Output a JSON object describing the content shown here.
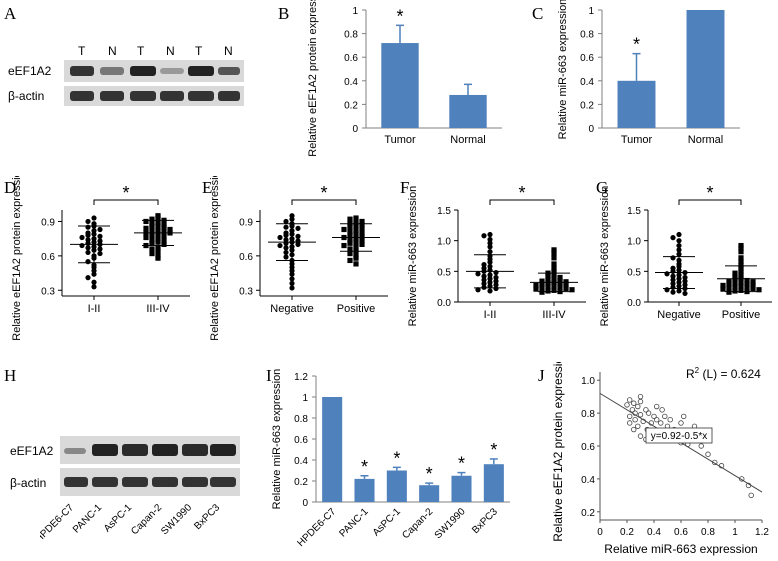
{
  "figure": {
    "panel_letters": [
      "A",
      "B",
      "C",
      "D",
      "E",
      "F",
      "G",
      "H",
      "I",
      "J"
    ]
  },
  "colors": {
    "bar": "#4f81bd",
    "axis": "#808080",
    "point": "#000000",
    "blot_bg": "#d9d9d9",
    "band": "#2b2b2b"
  },
  "panel_a": {
    "lanes": [
      "T",
      "N",
      "T",
      "N",
      "T",
      "N"
    ],
    "rows": [
      "eEF1A2",
      "β-actin"
    ]
  },
  "panel_h": {
    "rows": [
      "eEF1A2",
      "β-actin"
    ],
    "lanes": [
      "HPDE6-C7",
      "PANC-1",
      "AsPC-1",
      "Capan-2",
      "SW1990",
      "BxPC3"
    ]
  },
  "chart_data": [
    {
      "panel": "B",
      "type": "bar",
      "categories": [
        "Tumor",
        "Normal"
      ],
      "values": [
        0.72,
        0.28
      ],
      "errors": [
        0.15,
        0.09
      ],
      "stars": [
        "*",
        ""
      ],
      "ylabel": "Relative eEF1A2 protein expression",
      "yticks": [
        "0",
        "0.2",
        "0.4",
        "0.6",
        "0.8",
        "1"
      ],
      "ylim": [
        0,
        1
      ]
    },
    {
      "panel": "C",
      "type": "bar",
      "categories": [
        "Tumor",
        "Normal"
      ],
      "values": [
        0.4,
        1.0
      ],
      "errors": [
        0.23,
        0
      ],
      "stars": [
        "*",
        ""
      ],
      "ylabel": "Relative miR-663 expression",
      "yticks": [
        "0",
        "0.2",
        "0.4",
        "0.6",
        "0.8",
        "1"
      ],
      "ylim": [
        0,
        1
      ]
    },
    {
      "panel": "D",
      "type": "scatter",
      "categories": [
        "I-II",
        "III-IV"
      ],
      "groups": [
        {
          "mean": 0.7,
          "sd": 0.16,
          "values": [
            0.93,
            0.9,
            0.88,
            0.86,
            0.85,
            0.83,
            0.82,
            0.8,
            0.79,
            0.78,
            0.77,
            0.76,
            0.75,
            0.74,
            0.73,
            0.72,
            0.71,
            0.7,
            0.69,
            0.68,
            0.67,
            0.66,
            0.65,
            0.63,
            0.62,
            0.6,
            0.58,
            0.55,
            0.52,
            0.5,
            0.47,
            0.44,
            0.41,
            0.37,
            0.33
          ]
        },
        {
          "mean": 0.8,
          "sd": 0.11,
          "values": [
            0.95,
            0.93,
            0.92,
            0.91,
            0.9,
            0.89,
            0.88,
            0.87,
            0.86,
            0.86,
            0.85,
            0.84,
            0.83,
            0.82,
            0.82,
            0.81,
            0.8,
            0.8,
            0.79,
            0.78,
            0.77,
            0.76,
            0.75,
            0.74,
            0.73,
            0.72,
            0.71,
            0.7,
            0.69,
            0.67,
            0.66,
            0.64,
            0.62,
            0.6,
            0.58
          ]
        }
      ],
      "significance": "*",
      "ylabel": "Relative eEF1A2 protein expression",
      "yticks": [
        "0.3",
        "0.6",
        "0.9"
      ],
      "ylim": [
        0.25,
        1.0
      ]
    },
    {
      "panel": "E",
      "type": "scatter",
      "categories": [
        "Negative",
        "Positive"
      ],
      "groups": [
        {
          "mean": 0.72,
          "sd": 0.16,
          "values": [
            0.95,
            0.92,
            0.9,
            0.88,
            0.86,
            0.85,
            0.84,
            0.82,
            0.8,
            0.79,
            0.78,
            0.77,
            0.76,
            0.75,
            0.74,
            0.73,
            0.72,
            0.71,
            0.7,
            0.69,
            0.68,
            0.67,
            0.65,
            0.63,
            0.61,
            0.59,
            0.56,
            0.53,
            0.5,
            0.47,
            0.44,
            0.4,
            0.36,
            0.32
          ]
        },
        {
          "mean": 0.76,
          "sd": 0.12,
          "values": [
            0.93,
            0.92,
            0.9,
            0.89,
            0.88,
            0.87,
            0.86,
            0.85,
            0.84,
            0.83,
            0.82,
            0.81,
            0.8,
            0.79,
            0.78,
            0.77,
            0.76,
            0.75,
            0.74,
            0.73,
            0.72,
            0.71,
            0.7,
            0.69,
            0.68,
            0.66,
            0.64,
            0.62,
            0.6,
            0.58,
            0.56,
            0.53
          ]
        }
      ],
      "significance": "*",
      "ylabel": "Relative eEF1A2 protein expression",
      "yticks": [
        "0.3",
        "0.6",
        "0.9"
      ],
      "ylim": [
        0.25,
        1.0
      ]
    },
    {
      "panel": "F",
      "type": "scatter",
      "categories": [
        "I-II",
        "III-IV"
      ],
      "groups": [
        {
          "mean": 0.5,
          "sd": 0.27,
          "values": [
            1.1,
            1.08,
            1.02,
            0.96,
            0.9,
            0.82,
            0.75,
            0.7,
            0.65,
            0.61,
            0.58,
            0.55,
            0.52,
            0.5,
            0.48,
            0.46,
            0.44,
            0.42,
            0.4,
            0.38,
            0.36,
            0.34,
            0.32,
            0.3,
            0.28,
            0.26,
            0.24,
            0.22,
            0.2,
            0.18
          ]
        },
        {
          "mean": 0.32,
          "sd": 0.15,
          "values": [
            0.85,
            0.8,
            0.72,
            0.62,
            0.55,
            0.5,
            0.47,
            0.44,
            0.42,
            0.4,
            0.38,
            0.36,
            0.35,
            0.34,
            0.33,
            0.32,
            0.31,
            0.3,
            0.29,
            0.28,
            0.27,
            0.26,
            0.25,
            0.24,
            0.23,
            0.22,
            0.21,
            0.2,
            0.19,
            0.18,
            0.17,
            0.16
          ]
        }
      ],
      "significance": "*",
      "ylabel": "Relative miR-663 expression",
      "yticks": [
        "0.0",
        "0.5",
        "1.0",
        "1.5"
      ],
      "ylim": [
        0,
        1.5
      ]
    },
    {
      "panel": "G",
      "type": "scatter",
      "categories": [
        "Negative",
        "Positive"
      ],
      "groups": [
        {
          "mean": 0.48,
          "sd": 0.26,
          "values": [
            1.1,
            1.05,
            1.0,
            0.92,
            0.85,
            0.78,
            0.72,
            0.68,
            0.62,
            0.58,
            0.55,
            0.52,
            0.5,
            0.48,
            0.46,
            0.44,
            0.42,
            0.4,
            0.38,
            0.36,
            0.34,
            0.32,
            0.3,
            0.28,
            0.26,
            0.24,
            0.22,
            0.2,
            0.18,
            0.16,
            0.14
          ]
        },
        {
          "mean": 0.38,
          "sd": 0.21,
          "values": [
            0.92,
            0.88,
            0.82,
            0.72,
            0.66,
            0.6,
            0.55,
            0.5,
            0.47,
            0.44,
            0.41,
            0.39,
            0.37,
            0.35,
            0.34,
            0.33,
            0.32,
            0.31,
            0.3,
            0.29,
            0.28,
            0.27,
            0.26,
            0.25,
            0.24,
            0.23,
            0.22,
            0.21,
            0.2,
            0.19,
            0.18,
            0.17,
            0.16
          ]
        }
      ],
      "significance": "*",
      "ylabel": "Relative miR-663 expression",
      "yticks": [
        "0.0",
        "0.5",
        "1.0",
        "1.5"
      ],
      "ylim": [
        0,
        1.5
      ]
    },
    {
      "panel": "I",
      "type": "bar",
      "categories": [
        "HPDE6-C7",
        "PANC-1",
        "AsPC-1",
        "Capan-2",
        "SW1990",
        "BxPC3"
      ],
      "values": [
        1.0,
        0.22,
        0.3,
        0.16,
        0.25,
        0.36
      ],
      "errors": [
        0,
        0.03,
        0.03,
        0.02,
        0.03,
        0.05
      ],
      "stars": [
        "",
        "*",
        "*",
        "*",
        "*",
        "*"
      ],
      "ylabel": "Relative miR-663 expression",
      "yticks": [
        "0",
        "0.2",
        "0.4",
        "0.6",
        "0.8",
        "1",
        "1.2"
      ],
      "ylim": [
        0,
        1.2
      ]
    },
    {
      "panel": "J",
      "type": "scatter",
      "xlabel": "Relative miR-663 expression",
      "ylabel": "Relative eEF1A2 protein expression",
      "xticks": [
        "0",
        "0.2",
        "0.4",
        "0.6",
        "0.8",
        "1",
        "1.2"
      ],
      "xlim": [
        0,
        1.2
      ],
      "yticks": [
        "0.2",
        "0.4",
        "0.6",
        "0.8",
        "1.0"
      ],
      "ylim": [
        0.15,
        1.05
      ],
      "fit": {
        "intercept": 0.92,
        "slope": -0.5
      },
      "fit_label": "y=0.92-0.5*x",
      "r2_prefix": "R",
      "r2_sup": "2",
      "r2_suffix": " (L) = 0.624",
      "points": [
        [
          0.2,
          0.85
        ],
        [
          0.22,
          0.88
        ],
        [
          0.25,
          0.86
        ],
        [
          0.28,
          0.84
        ],
        [
          0.3,
          0.87
        ],
        [
          0.24,
          0.82
        ],
        [
          0.26,
          0.8
        ],
        [
          0.22,
          0.78
        ],
        [
          0.3,
          0.79
        ],
        [
          0.34,
          0.82
        ],
        [
          0.36,
          0.8
        ],
        [
          0.4,
          0.78
        ],
        [
          0.42,
          0.76
        ],
        [
          0.45,
          0.74
        ],
        [
          0.48,
          0.78
        ],
        [
          0.5,
          0.72
        ],
        [
          0.52,
          0.76
        ],
        [
          0.55,
          0.7
        ],
        [
          0.6,
          0.74
        ],
        [
          0.62,
          0.78
        ],
        [
          0.65,
          0.68
        ],
        [
          0.7,
          0.72
        ],
        [
          0.35,
          0.7
        ],
        [
          0.38,
          0.68
        ],
        [
          0.4,
          0.65
        ],
        [
          0.44,
          0.66
        ],
        [
          0.28,
          0.72
        ],
        [
          0.3,
          0.66
        ],
        [
          0.25,
          0.7
        ],
        [
          0.22,
          0.74
        ],
        [
          0.32,
          0.75
        ],
        [
          0.48,
          0.65
        ],
        [
          0.55,
          0.66
        ],
        [
          0.6,
          0.62
        ],
        [
          0.65,
          0.61
        ],
        [
          0.75,
          0.6
        ],
        [
          0.8,
          0.55
        ],
        [
          0.85,
          0.5
        ],
        [
          0.9,
          0.48
        ],
        [
          1.05,
          0.4
        ],
        [
          1.1,
          0.36
        ],
        [
          1.12,
          0.3
        ],
        [
          0.42,
          0.84
        ],
        [
          0.46,
          0.82
        ],
        [
          0.3,
          0.9
        ],
        [
          0.26,
          0.76
        ],
        [
          0.34,
          0.64
        ],
        [
          0.38,
          0.74
        ]
      ]
    }
  ]
}
